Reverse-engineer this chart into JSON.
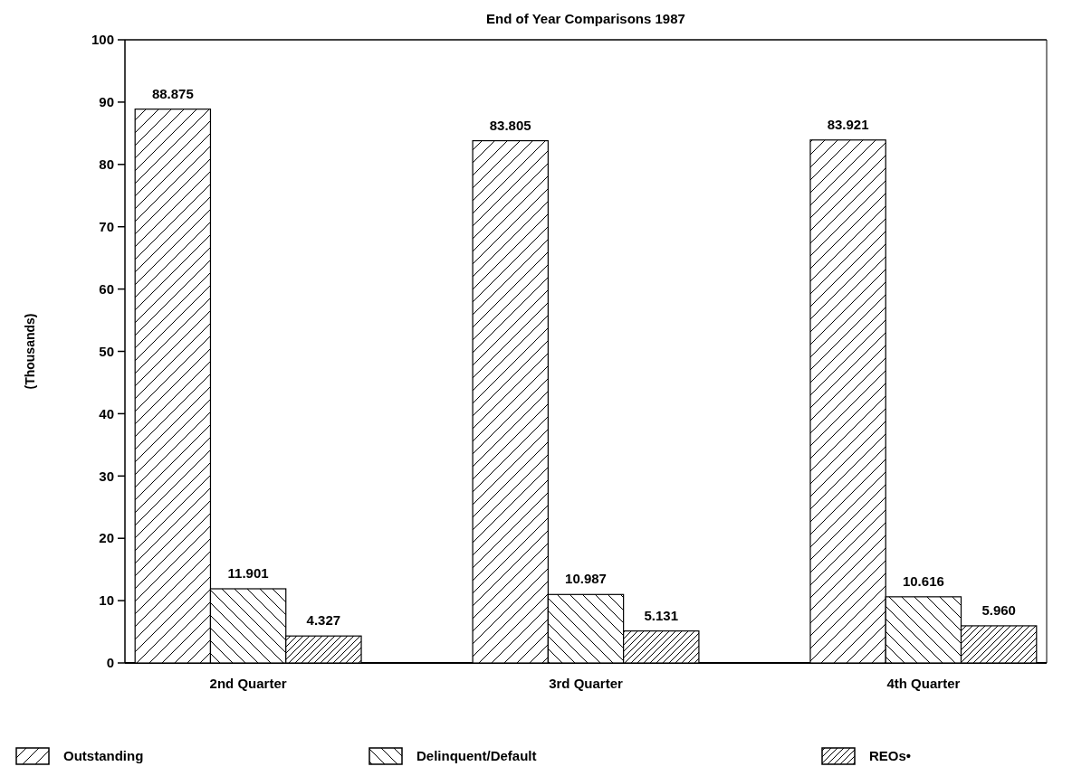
{
  "chart_data": {
    "type": "bar",
    "title": "End of Year Comparisons 1987",
    "ylabel": "(Thousands)",
    "categories": [
      "2nd Quarter",
      "3rd Quarter",
      "4th Quarter"
    ],
    "series": [
      {
        "name": "Outstanding",
        "color": "#000000",
        "values": [
          88.875,
          83.805,
          83.921
        ],
        "value_labels": [
          "88.875",
          "83.805",
          "83.921"
        ]
      },
      {
        "name": "Delinquent/Default",
        "color": "#000000",
        "values": [
          11.901,
          10.987,
          10.616
        ],
        "value_labels": [
          "11.901",
          "10.987",
          "10.616"
        ]
      },
      {
        "name": "REOs•",
        "color": "#000000",
        "values": [
          4.327,
          5.131,
          5.96
        ],
        "value_labels": [
          "4.327",
          "5.131",
          "5.960"
        ]
      }
    ],
    "ylim": [
      0,
      100
    ],
    "yticks": [
      0,
      10,
      20,
      30,
      40,
      50,
      60,
      70,
      80,
      90,
      100
    ],
    "grid": false,
    "legend": "bottom"
  }
}
